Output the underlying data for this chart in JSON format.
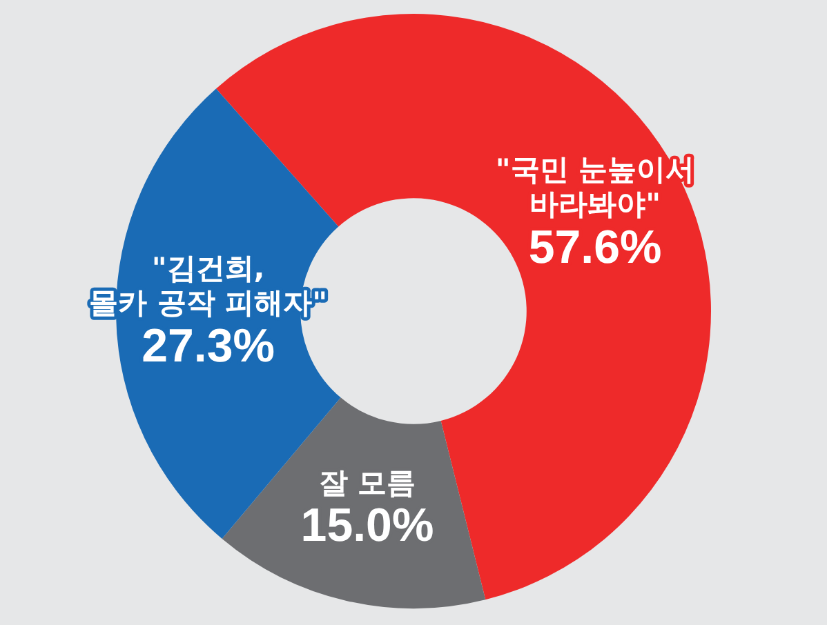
{
  "chart_data": {
    "type": "donut",
    "categories": [
      "\"국민 눈높이서\n바라봐야\"",
      "잘 모름",
      "\"김건희,\n몰카 공작 피해자\""
    ],
    "values": [
      57.6,
      15.0,
      27.3
    ],
    "colors": [
      "#ee2a2a",
      "#6d6e71",
      "#1a6bb5"
    ],
    "value_labels": [
      "57.6%",
      "15.0%",
      "27.3%"
    ],
    "legend": false
  }
}
